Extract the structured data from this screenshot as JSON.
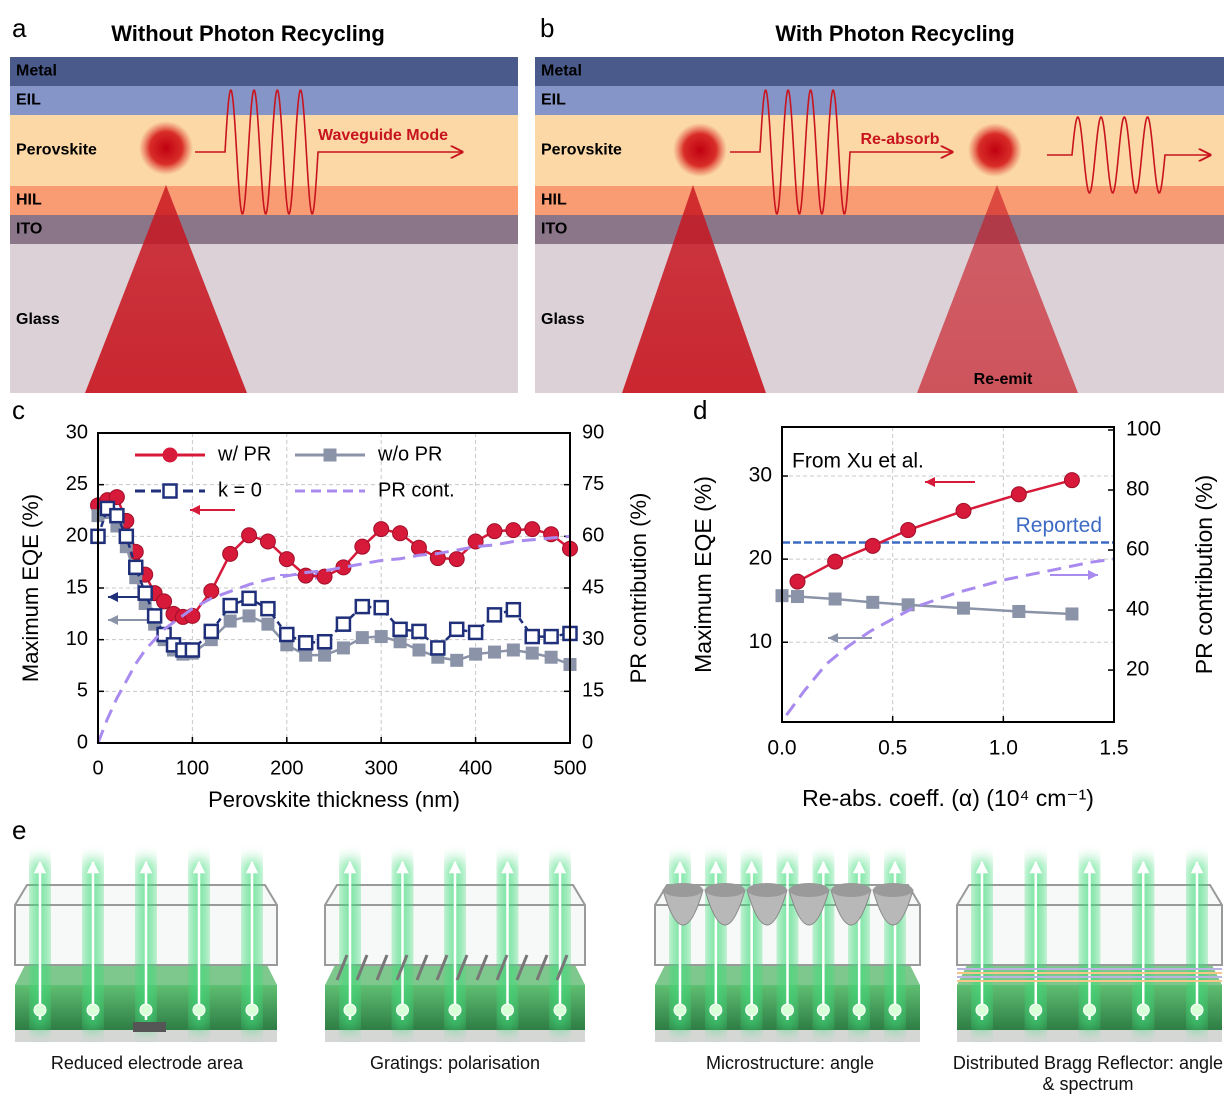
{
  "panel_labels": [
    "a",
    "b",
    "c",
    "d",
    "e"
  ],
  "layers": [
    {
      "name": "Metal",
      "color": "#4a5a8b"
    },
    {
      "name": "EIL",
      "color": "#8595c8"
    },
    {
      "name": "Perovskite",
      "color": "#fbd8a5"
    },
    {
      "name": "HIL",
      "color": "#f99c73"
    },
    {
      "name": "ITO",
      "color": "#8b7589"
    },
    {
      "name": "Glass",
      "color": "#dbd1d7"
    }
  ],
  "diagram_a": {
    "title": "Without Photon Recycling",
    "annotation": "Waveguide Mode"
  },
  "diagram_b": {
    "title": "With Photon Recycling",
    "annotations": [
      "Re-absorb",
      "Re-emit"
    ]
  },
  "chart_data": [
    {
      "type": "line",
      "x_label": "Perovskite thickness (nm)",
      "y_label": "Maximum EQE (%)",
      "y2_label": "PR contribution (%)",
      "x": [
        0,
        10,
        20,
        30,
        40,
        50,
        60,
        70,
        80,
        90,
        100,
        120,
        140,
        160,
        180,
        200,
        220,
        240,
        260,
        280,
        300,
        320,
        340,
        360,
        380,
        400,
        420,
        440,
        460,
        480,
        500
      ],
      "xlim": [
        0,
        500
      ],
      "xticks": [
        0,
        100,
        200,
        300,
        400,
        500
      ],
      "ylim": [
        0,
        30
      ],
      "yticks": [
        0,
        5,
        10,
        15,
        20,
        25,
        30
      ],
      "y2lim": [
        0,
        90
      ],
      "y2ticks": [
        0,
        15,
        30,
        45,
        60,
        75,
        90
      ],
      "grid": true,
      "series": [
        {
          "name": "w/ PR",
          "color": "#d7193a",
          "marker": "circle",
          "line_style": "solid",
          "values": [
            23,
            23.5,
            23.8,
            21.5,
            18.5,
            16.3,
            14.5,
            13.7,
            12.5,
            12.2,
            12.3,
            14.7,
            18.3,
            20.1,
            19.5,
            17.8,
            16.2,
            16.1,
            17,
            19,
            20.7,
            20.3,
            18.9,
            17.9,
            17.8,
            19.5,
            20.5,
            20.6,
            20.7,
            20.2,
            18.8
          ]
        },
        {
          "name": "w/o PR",
          "color": "#8a93a8",
          "marker": "square",
          "line_style": "solid",
          "values": [
            22,
            22.3,
            21,
            19,
            16,
            13.5,
            11.5,
            10,
            9,
            8.6,
            8.7,
            10,
            11.8,
            12.3,
            11.5,
            9.5,
            8.5,
            8.5,
            9.2,
            10.2,
            10.3,
            9.8,
            9,
            8.3,
            8,
            8.6,
            8.8,
            9,
            8.7,
            8.3,
            7.6
          ]
        },
        {
          "name": "k = 0",
          "color": "#1f2f7a",
          "marker": "open-square",
          "line_style": "dashed",
          "values": [
            20,
            22.7,
            22,
            20,
            17,
            14.5,
            12.3,
            10.5,
            9.5,
            9,
            9,
            10.8,
            13.3,
            14,
            13,
            10.5,
            9.7,
            9.8,
            11.5,
            13.2,
            13.1,
            11,
            10.8,
            9.2,
            11,
            10.7,
            12.4,
            12.9,
            10.3,
            10.3,
            10.6
          ]
        },
        {
          "name": "PR cont.",
          "color": "#a98bf0",
          "marker": "none",
          "line_style": "dashed",
          "axis": "y2",
          "values": [
            0,
            7,
            13,
            18,
            23,
            27,
            30,
            33,
            35,
            37,
            39,
            42,
            44,
            46,
            47.5,
            48.5,
            49.5,
            50,
            51,
            52,
            53,
            53.5,
            54.5,
            55,
            56,
            57,
            57.5,
            58.5,
            59,
            59.5,
            60
          ]
        }
      ]
    },
    {
      "type": "line",
      "annotation": "From Xu et al.",
      "reference_line": {
        "label": "Reported",
        "value": 22,
        "color": "#3d6bc4"
      },
      "x_label": "Re-abs. coeff. (α) (10⁴ cm⁻¹)",
      "y_label": "Maximum EQE (%)",
      "y2_label": "PR contribution (%)",
      "xlim": [
        0,
        1.5
      ],
      "xticks": [
        {
          "value": 0,
          "label": "0.0"
        },
        0.5,
        {
          "value": 1,
          "label": "1.0"
        },
        1.5
      ],
      "ylim": [
        0.4,
        35.9
      ],
      "yticks": [
        10,
        20,
        30
      ],
      "y2lim": [
        2.7,
        101
      ],
      "y2ticks": [
        20,
        40,
        60,
        80,
        100
      ],
      "grid": true,
      "series": [
        {
          "color": "#d7193a",
          "marker": "circle",
          "line_style": "solid",
          "x": [
            0.07,
            0.24,
            0.41,
            0.57,
            0.82,
            1.07,
            1.31
          ],
          "values": [
            17.3,
            19.7,
            21.6,
            23.5,
            25.8,
            27.8,
            29.5
          ]
        },
        {
          "color": "#8a93a8",
          "marker": "square",
          "line_style": "solid",
          "x": [
            0,
            0.07,
            0.24,
            0.41,
            0.57,
            0.82,
            1.07,
            1.31
          ],
          "values": [
            15.6,
            15.5,
            15.2,
            14.8,
            14.5,
            14.1,
            13.7,
            13.4
          ]
        },
        {
          "color": "#a98bf0",
          "marker": "none",
          "line_style": "dashed",
          "axis": "y2",
          "x": [
            0.02,
            0.1,
            0.2,
            0.3,
            0.4,
            0.5,
            0.6,
            0.8,
            1,
            1.2,
            1.4,
            1.5
          ],
          "values": [
            5,
            13,
            22,
            28,
            33,
            37,
            41,
            46,
            50,
            53,
            56,
            57
          ]
        }
      ]
    }
  ],
  "panel_e": {
    "captions": [
      "Reduced electrode area",
      "Gratings: polarisation",
      "Microstructure: angle",
      "Distributed Bragg Reflector: angle & spectrum"
    ]
  }
}
